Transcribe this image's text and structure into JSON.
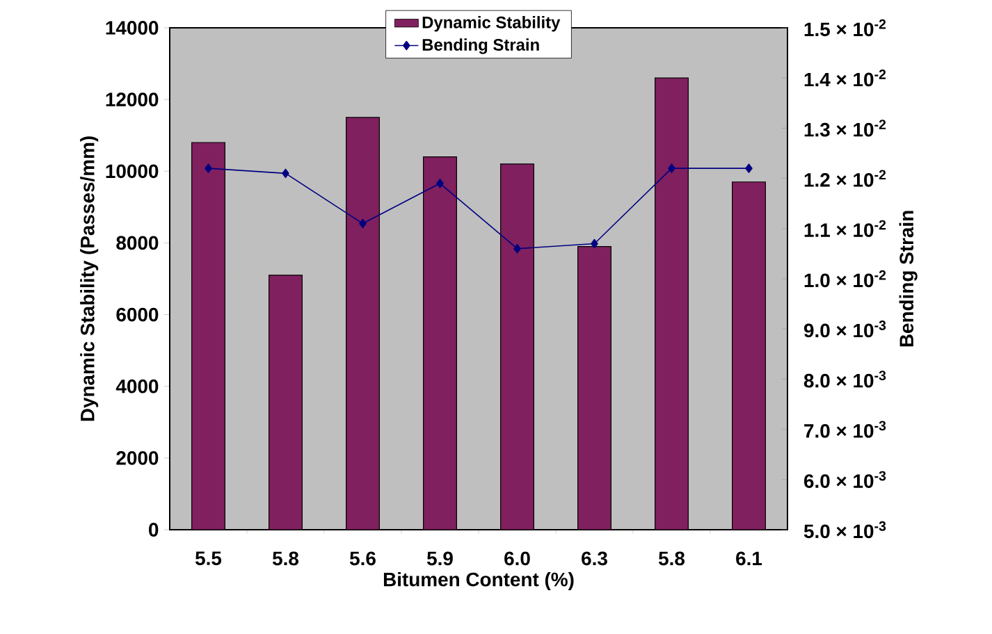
{
  "chart_data": {
    "type": "bar",
    "xlabel": "Bitumen Content (%)",
    "ylabel": "Dynamic Stability  (Passes/mm)",
    "y2label": "Bending Strain",
    "categories": [
      "5.5",
      "5.8",
      "5.6",
      "5.9",
      "6.0",
      "6.3",
      "5.8",
      "6.1"
    ],
    "series": [
      {
        "name": "Dynamic Stability",
        "color": "#80205f",
        "values": [
          10800,
          7100,
          11500,
          10400,
          10200,
          7900,
          12600,
          9700
        ]
      },
      {
        "name": "Bending Strain",
        "type": "line",
        "axis": "y2",
        "color": "#000080",
        "marker": "diamond",
        "line_style": "solid",
        "values": [
          0.0122,
          0.0121,
          0.0111,
          0.0119,
          0.0106,
          0.0107,
          0.0122,
          0.0122
        ]
      }
    ],
    "ylim": [
      0,
      14000
    ],
    "yticks": [
      0,
      2000,
      4000,
      6000,
      8000,
      10000,
      12000,
      14000
    ],
    "y2lim": [
      0.005,
      0.015
    ],
    "y2ticks": [
      {
        "value": 0.005,
        "label": "5.0 × 10$^{-3}$"
      },
      {
        "value": 0.006,
        "label": "6.0 × 10$^{-3}$"
      },
      {
        "value": 0.007,
        "label": "7.0 × 10$^{-3}$"
      },
      {
        "value": 0.008,
        "label": "8.0 × 10$^{-3}$"
      },
      {
        "value": 0.009,
        "label": "9.0 × 10$^{-3}$"
      },
      {
        "value": 0.01,
        "label": "1.0 × 10$^{-2}$"
      },
      {
        "value": 0.011,
        "label": "1.1 × 10$^{-2}$"
      },
      {
        "value": 0.012,
        "label": "1.2 × 10$^{-2}$"
      },
      {
        "value": 0.013,
        "label": "1.3 × 10$^{-2}$"
      },
      {
        "value": 0.014,
        "label": "1.4 × 10$^{-2}$"
      },
      {
        "value": 0.015,
        "label": "1.5 × 10$^{-2}$"
      }
    ],
    "legend": "top"
  }
}
